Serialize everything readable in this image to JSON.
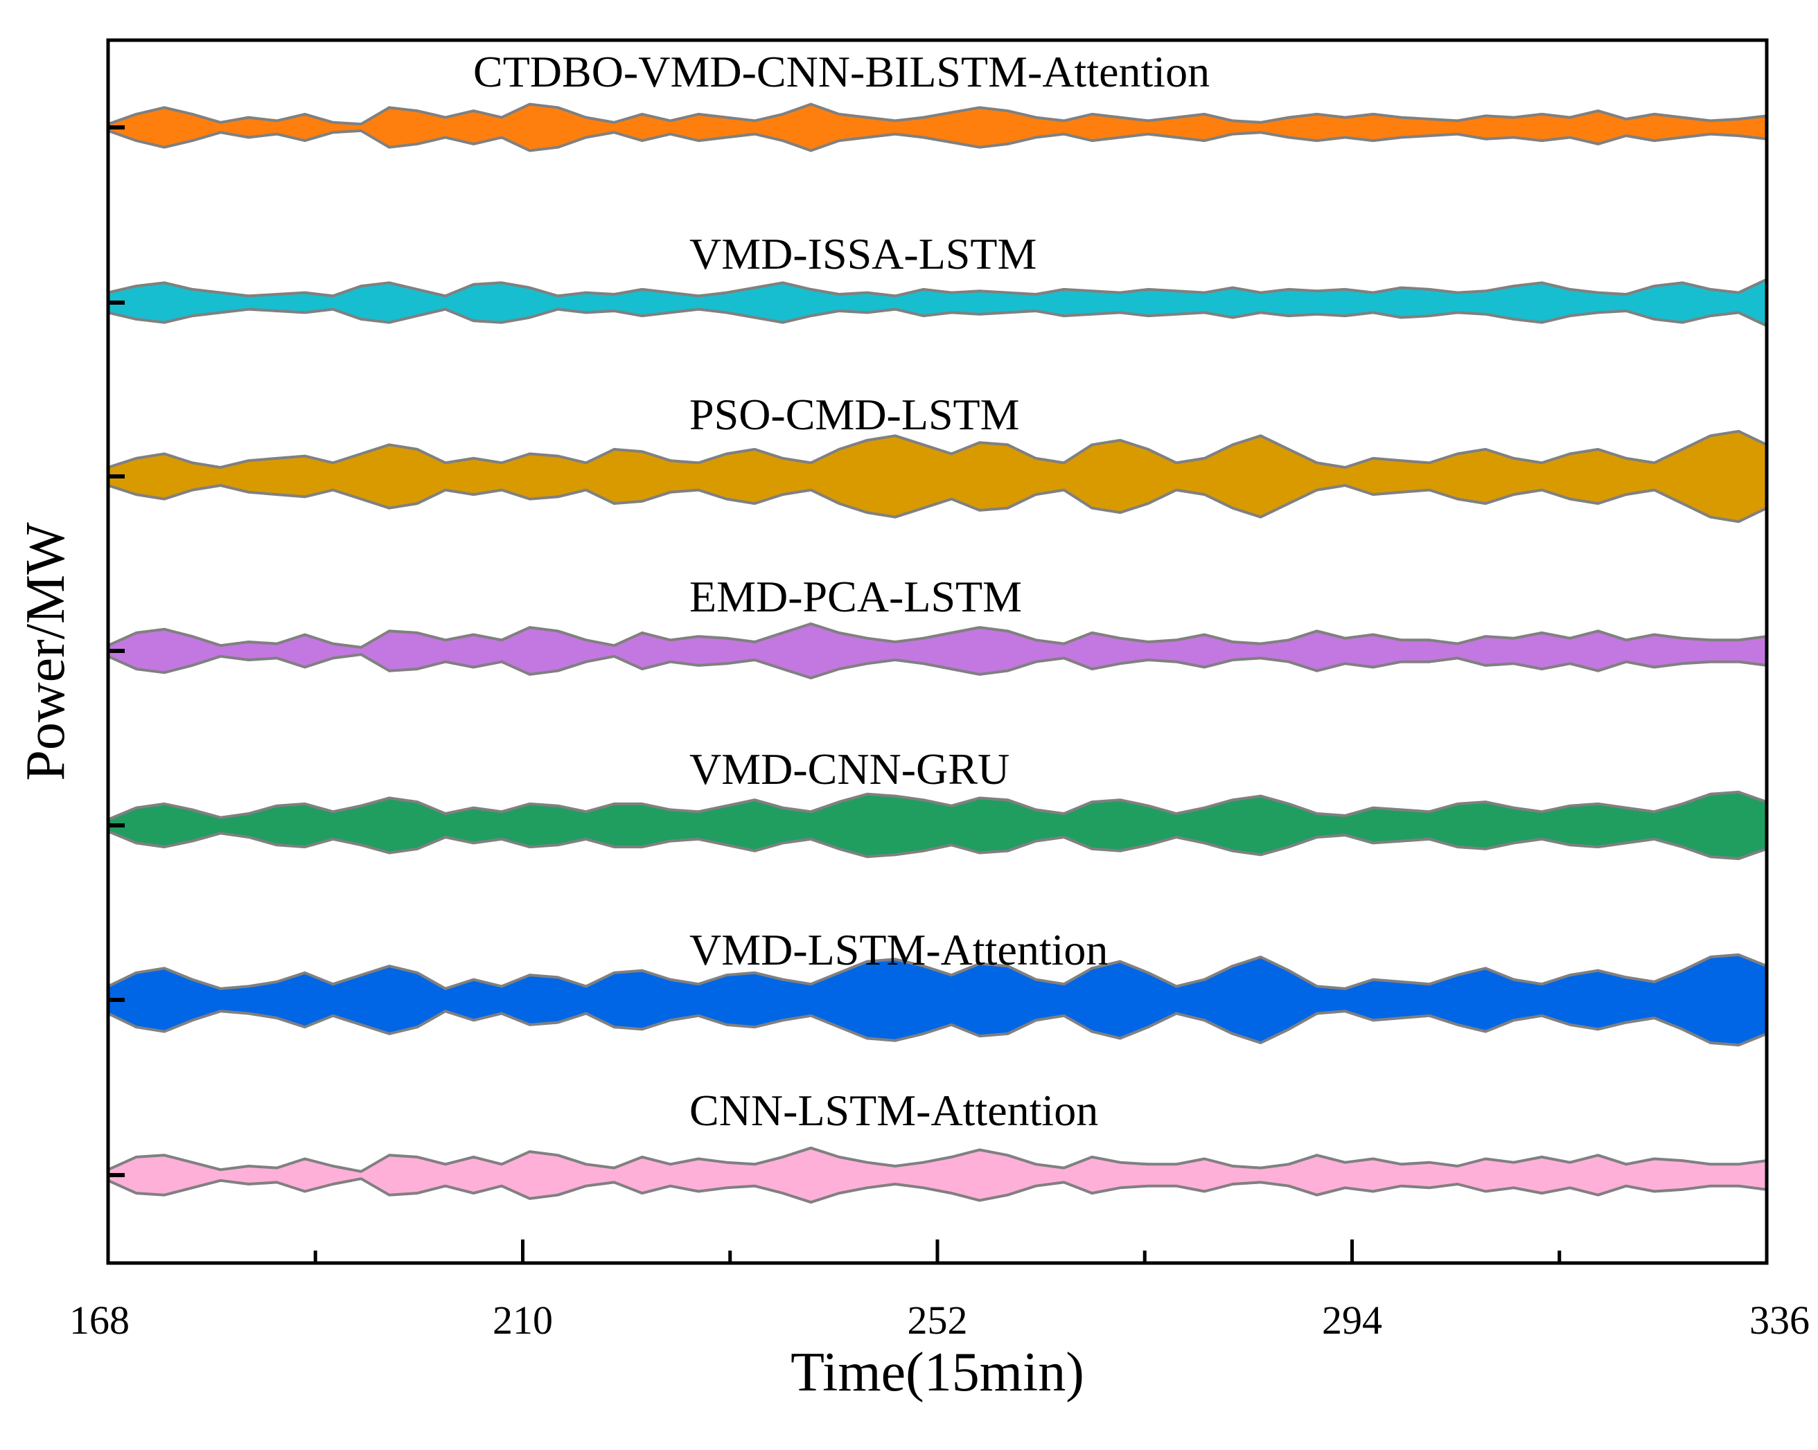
{
  "chart_data": {
    "type": "area",
    "title": "",
    "xlabel": "Time(15min)",
    "ylabel": "Power/MW",
    "x_ticks": [
      168,
      210,
      252,
      294,
      336
    ],
    "xlim": [
      168,
      336
    ],
    "grid": false,
    "legend": "none",
    "outline_color": "#808080",
    "series": [
      {
        "name": "CTDBO-VMD-CNN-BILSTM-Attention",
        "color": "#FF7F0E",
        "amplitude": 0.55,
        "profile": [
          0.1,
          0.4,
          0.6,
          0.4,
          0.15,
          0.3,
          0.2,
          0.4,
          0.15,
          0.1,
          0.6,
          0.5,
          0.3,
          0.5,
          0.3,
          0.7,
          0.6,
          0.3,
          0.15,
          0.4,
          0.2,
          0.4,
          0.3,
          0.2,
          0.4,
          0.7,
          0.4,
          0.3,
          0.2,
          0.3,
          0.45,
          0.6,
          0.5,
          0.3,
          0.2,
          0.4,
          0.3,
          0.2,
          0.3,
          0.4,
          0.2,
          0.15,
          0.3,
          0.4,
          0.3,
          0.4,
          0.3,
          0.25,
          0.2,
          0.35,
          0.3,
          0.4,
          0.3,
          0.5,
          0.25,
          0.4,
          0.3,
          0.2,
          0.25,
          0.35
        ]
      },
      {
        "name": "VMD-ISSA-LSTM",
        "color": "#17BECF",
        "amplitude": 0.55,
        "profile": [
          0.3,
          0.5,
          0.6,
          0.4,
          0.3,
          0.2,
          0.25,
          0.3,
          0.2,
          0.5,
          0.6,
          0.4,
          0.2,
          0.55,
          0.6,
          0.45,
          0.2,
          0.3,
          0.25,
          0.4,
          0.3,
          0.2,
          0.3,
          0.45,
          0.6,
          0.4,
          0.25,
          0.3,
          0.2,
          0.4,
          0.3,
          0.35,
          0.3,
          0.25,
          0.4,
          0.35,
          0.3,
          0.4,
          0.35,
          0.3,
          0.45,
          0.3,
          0.4,
          0.35,
          0.4,
          0.3,
          0.45,
          0.4,
          0.3,
          0.35,
          0.5,
          0.6,
          0.4,
          0.3,
          0.25,
          0.5,
          0.6,
          0.4,
          0.3,
          0.7
        ]
      },
      {
        "name": "PSO-CMD-LSTM",
        "color": "#D99A00",
        "amplitude": 0.75,
        "profile": [
          0.2,
          0.4,
          0.5,
          0.3,
          0.2,
          0.35,
          0.4,
          0.45,
          0.3,
          0.5,
          0.7,
          0.6,
          0.3,
          0.4,
          0.3,
          0.5,
          0.45,
          0.3,
          0.6,
          0.55,
          0.35,
          0.3,
          0.5,
          0.6,
          0.4,
          0.3,
          0.6,
          0.8,
          0.9,
          0.7,
          0.5,
          0.75,
          0.7,
          0.4,
          0.3,
          0.7,
          0.8,
          0.6,
          0.3,
          0.4,
          0.7,
          0.9,
          0.6,
          0.3,
          0.2,
          0.4,
          0.35,
          0.3,
          0.5,
          0.6,
          0.4,
          0.3,
          0.5,
          0.6,
          0.4,
          0.3,
          0.6,
          0.9,
          1.0,
          0.7
        ]
      },
      {
        "name": "EMD-PCA-LSTM",
        "color": "#C377E0",
        "amplitude": 0.6,
        "profile": [
          0.15,
          0.5,
          0.6,
          0.4,
          0.15,
          0.25,
          0.2,
          0.45,
          0.2,
          0.1,
          0.55,
          0.5,
          0.3,
          0.45,
          0.3,
          0.65,
          0.55,
          0.3,
          0.15,
          0.5,
          0.3,
          0.4,
          0.35,
          0.25,
          0.5,
          0.75,
          0.5,
          0.35,
          0.25,
          0.35,
          0.5,
          0.65,
          0.55,
          0.3,
          0.2,
          0.5,
          0.35,
          0.25,
          0.3,
          0.45,
          0.25,
          0.2,
          0.3,
          0.55,
          0.35,
          0.45,
          0.3,
          0.3,
          0.2,
          0.4,
          0.35,
          0.5,
          0.35,
          0.55,
          0.3,
          0.45,
          0.35,
          0.3,
          0.3,
          0.4
        ]
      },
      {
        "name": "VMD-CNN-GRU",
        "color": "#1F9E60",
        "amplitude": 0.65,
        "profile": [
          0.15,
          0.45,
          0.55,
          0.4,
          0.2,
          0.3,
          0.5,
          0.55,
          0.35,
          0.5,
          0.7,
          0.6,
          0.3,
          0.45,
          0.35,
          0.55,
          0.5,
          0.35,
          0.55,
          0.55,
          0.4,
          0.35,
          0.5,
          0.65,
          0.45,
          0.35,
          0.6,
          0.8,
          0.75,
          0.65,
          0.5,
          0.7,
          0.65,
          0.4,
          0.3,
          0.6,
          0.65,
          0.5,
          0.3,
          0.45,
          0.65,
          0.75,
          0.55,
          0.3,
          0.25,
          0.45,
          0.4,
          0.35,
          0.55,
          0.6,
          0.45,
          0.35,
          0.5,
          0.55,
          0.45,
          0.35,
          0.55,
          0.8,
          0.85,
          0.6
        ]
      },
      {
        "name": "VMD-LSTM-Attention",
        "color": "#0066E6",
        "amplitude": 0.75,
        "profile": [
          0.3,
          0.6,
          0.7,
          0.45,
          0.25,
          0.3,
          0.4,
          0.6,
          0.35,
          0.55,
          0.75,
          0.6,
          0.25,
          0.45,
          0.3,
          0.55,
          0.5,
          0.3,
          0.6,
          0.65,
          0.45,
          0.35,
          0.55,
          0.6,
          0.45,
          0.35,
          0.6,
          0.85,
          0.9,
          0.75,
          0.55,
          0.8,
          0.75,
          0.45,
          0.35,
          0.7,
          0.85,
          0.6,
          0.3,
          0.45,
          0.75,
          0.95,
          0.65,
          0.3,
          0.25,
          0.45,
          0.4,
          0.35,
          0.55,
          0.7,
          0.45,
          0.35,
          0.55,
          0.65,
          0.5,
          0.4,
          0.65,
          0.95,
          1.0,
          0.75
        ]
      },
      {
        "name": "CNN-LSTM-Attention",
        "color": "#FFB0D9",
        "amplitude": 0.6,
        "profile": [
          0.15,
          0.5,
          0.55,
          0.35,
          0.15,
          0.25,
          0.2,
          0.45,
          0.25,
          0.1,
          0.55,
          0.5,
          0.3,
          0.5,
          0.3,
          0.65,
          0.55,
          0.3,
          0.2,
          0.5,
          0.3,
          0.45,
          0.35,
          0.3,
          0.5,
          0.75,
          0.5,
          0.35,
          0.25,
          0.35,
          0.5,
          0.7,
          0.55,
          0.3,
          0.2,
          0.5,
          0.35,
          0.3,
          0.3,
          0.45,
          0.25,
          0.2,
          0.3,
          0.55,
          0.35,
          0.45,
          0.3,
          0.35,
          0.25,
          0.45,
          0.35,
          0.5,
          0.35,
          0.55,
          0.3,
          0.45,
          0.4,
          0.3,
          0.3,
          0.4
        ]
      }
    ]
  }
}
